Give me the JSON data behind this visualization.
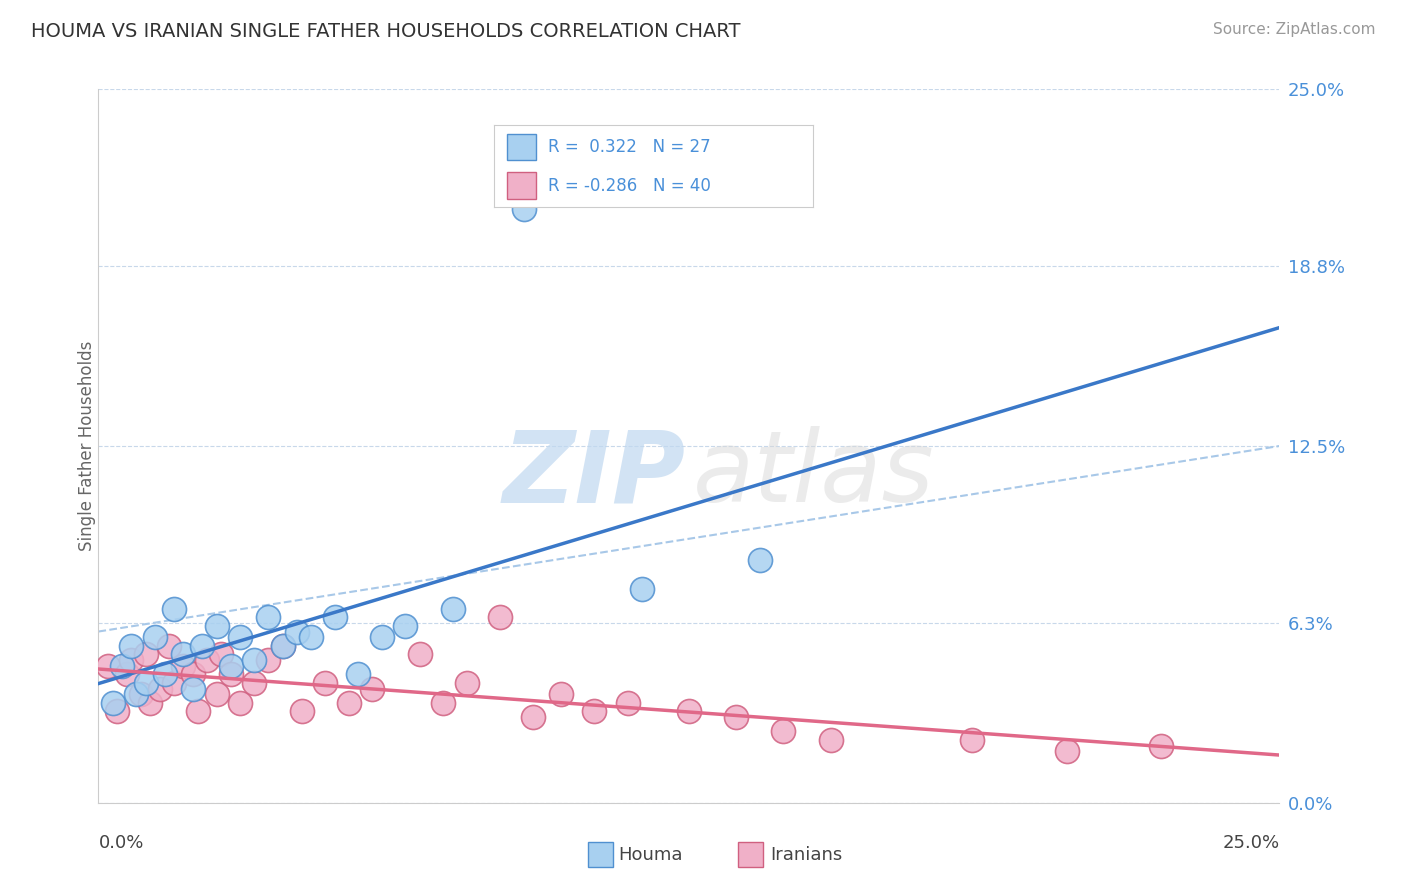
{
  "title": "HOUMA VS IRANIAN SINGLE FATHER HOUSEHOLDS CORRELATION CHART",
  "source_text": "Source: ZipAtlas.com",
  "ylabel": "Single Father Households",
  "ytick_labels": [
    "0.0%",
    "6.3%",
    "12.5%",
    "18.8%",
    "25.0%"
  ],
  "ytick_values": [
    0.0,
    6.3,
    12.5,
    18.8,
    25.0
  ],
  "xmin": 0.0,
  "xmax": 25.0,
  "ymin": 0.0,
  "ymax": 25.0,
  "houma_color": "#a8d0f0",
  "houma_edge_color": "#5090d0",
  "iranians_color": "#f0b0c8",
  "iranians_edge_color": "#d06080",
  "houma_R": 0.322,
  "houma_N": 27,
  "iranians_R": -0.286,
  "iranians_N": 40,
  "legend_color": "#4a90d9",
  "background_color": "#ffffff",
  "grid_color": "#c8d8ea",
  "dash_line_color": "#a8c8e8",
  "houma_scatter_x": [
    0.3,
    0.5,
    0.7,
    0.8,
    1.0,
    1.2,
    1.4,
    1.6,
    1.8,
    2.0,
    2.2,
    2.5,
    2.8,
    3.0,
    3.3,
    3.6,
    3.9,
    4.2,
    4.5,
    5.0,
    5.5,
    6.0,
    6.5,
    7.5,
    9.0,
    11.5,
    14.0
  ],
  "houma_scatter_y": [
    3.5,
    4.8,
    5.5,
    3.8,
    4.2,
    5.8,
    4.5,
    6.8,
    5.2,
    4.0,
    5.5,
    6.2,
    4.8,
    5.8,
    5.0,
    6.5,
    5.5,
    6.0,
    5.8,
    6.5,
    4.5,
    5.8,
    6.2,
    6.8,
    20.8,
    7.5,
    8.5
  ],
  "iranians_scatter_x": [
    0.2,
    0.4,
    0.6,
    0.7,
    0.9,
    1.0,
    1.1,
    1.3,
    1.5,
    1.6,
    1.8,
    2.0,
    2.1,
    2.3,
    2.5,
    2.6,
    2.8,
    3.0,
    3.3,
    3.6,
    3.9,
    4.3,
    4.8,
    5.3,
    5.8,
    6.8,
    7.3,
    7.8,
    8.5,
    9.2,
    9.8,
    10.5,
    11.2,
    12.5,
    13.5,
    14.5,
    15.5,
    18.5,
    20.5,
    22.5
  ],
  "iranians_scatter_y": [
    4.8,
    3.2,
    4.5,
    5.0,
    3.8,
    5.2,
    3.5,
    4.0,
    5.5,
    4.2,
    4.8,
    4.5,
    3.2,
    5.0,
    3.8,
    5.2,
    4.5,
    3.5,
    4.2,
    5.0,
    5.5,
    3.2,
    4.2,
    3.5,
    4.0,
    5.2,
    3.5,
    4.2,
    6.5,
    3.0,
    3.8,
    3.2,
    3.5,
    3.2,
    3.0,
    2.5,
    2.2,
    2.2,
    1.8,
    2.0
  ],
  "houma_line_color": "#3a78c8",
  "iranians_line_color": "#e06888"
}
